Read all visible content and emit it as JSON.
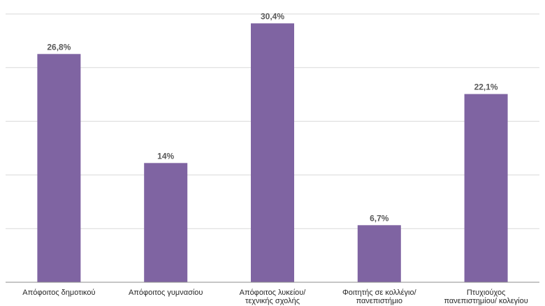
{
  "chart_data": {
    "type": "bar",
    "title": "",
    "xlabel": "",
    "ylabel": "",
    "ylim": [
      0,
      31.5
    ],
    "grid": true,
    "legend": "none",
    "bar_color": "#7f64a2",
    "categories": [
      [
        "Απόφοιτος δημοτικού"
      ],
      [
        "Απόφοιτος γυμνασίου"
      ],
      [
        "Απόφοιτος λυκείου/",
        "τεχνικής σχολής"
      ],
      [
        "Φοιτητής σε κολλέγιο/",
        "πανεπιστήμιο"
      ],
      [
        "Πτυχιούχος",
        "πανεπιστημίου/ κολεγίου"
      ]
    ],
    "values": [
      26.8,
      14,
      30.4,
      6.7,
      22.1
    ],
    "value_labels": [
      "26,8%",
      "14%",
      "30,4%",
      "6,7%",
      "22,1%"
    ]
  }
}
